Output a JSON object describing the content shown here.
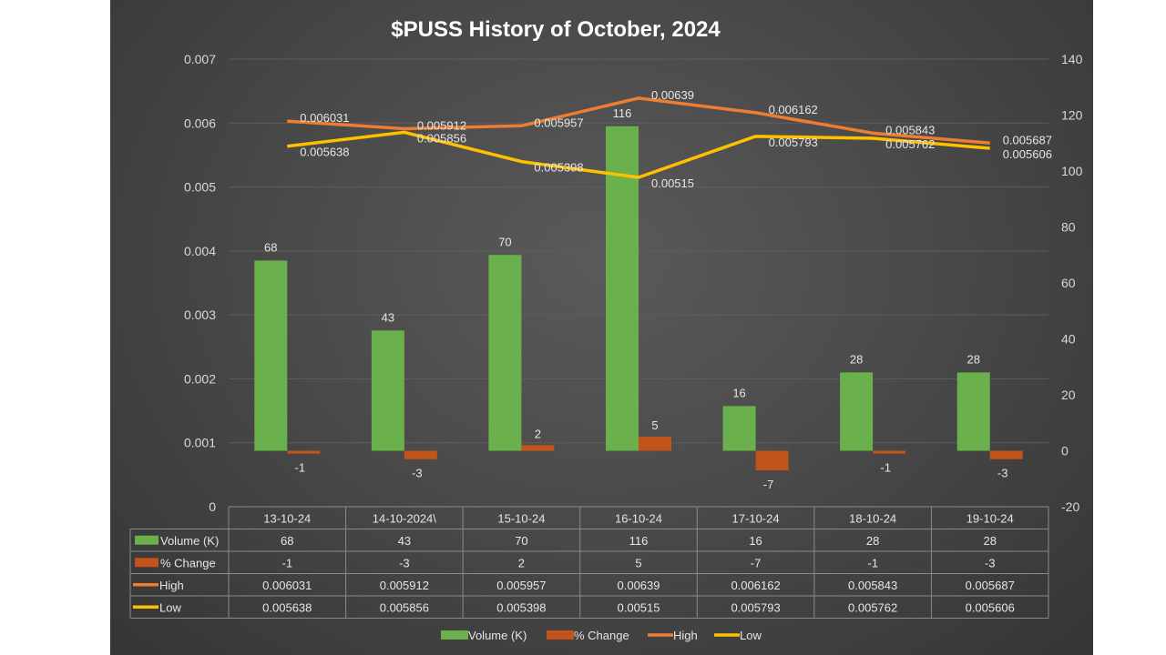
{
  "chart_data": {
    "type": "bar",
    "title": "$PUSS History of October, 2024",
    "categories": [
      "13-10-24",
      "14-10-2024\\",
      "15-10-24",
      "16-10-24",
      "17-10-24",
      "18-10-24",
      "19-10-24"
    ],
    "series": [
      {
        "name": "Volume (K)",
        "type": "bar",
        "axis": "right",
        "color": "#6ab04c",
        "values": [
          68,
          43,
          70,
          116,
          16,
          28,
          28
        ]
      },
      {
        "name": "% Change",
        "type": "bar",
        "axis": "right",
        "color": "#c0541b",
        "values": [
          -1,
          -3,
          2,
          5,
          -7,
          -1,
          -3
        ]
      },
      {
        "name": "High",
        "type": "line",
        "axis": "left",
        "color": "#ed7d31",
        "values": [
          0.006031,
          0.005912,
          0.005957,
          0.00639,
          0.006162,
          0.005843,
          0.005687
        ]
      },
      {
        "name": "Low",
        "type": "line",
        "axis": "left",
        "color": "#ffc000",
        "values": [
          0.005638,
          0.005856,
          0.005398,
          0.00515,
          0.005793,
          0.005762,
          0.005606
        ]
      }
    ],
    "y_left": {
      "range": [
        0,
        0.007
      ],
      "ticks": [
        "0",
        "0.001",
        "0.002",
        "0.003",
        "0.004",
        "0.005",
        "0.006",
        "0.007"
      ]
    },
    "y_right": {
      "range": [
        -20,
        140
      ],
      "ticks": [
        "-20",
        "0",
        "20",
        "40",
        "60",
        "80",
        "100",
        "120",
        "140"
      ]
    },
    "grid": true,
    "legend": "bottom",
    "data_table": true
  }
}
